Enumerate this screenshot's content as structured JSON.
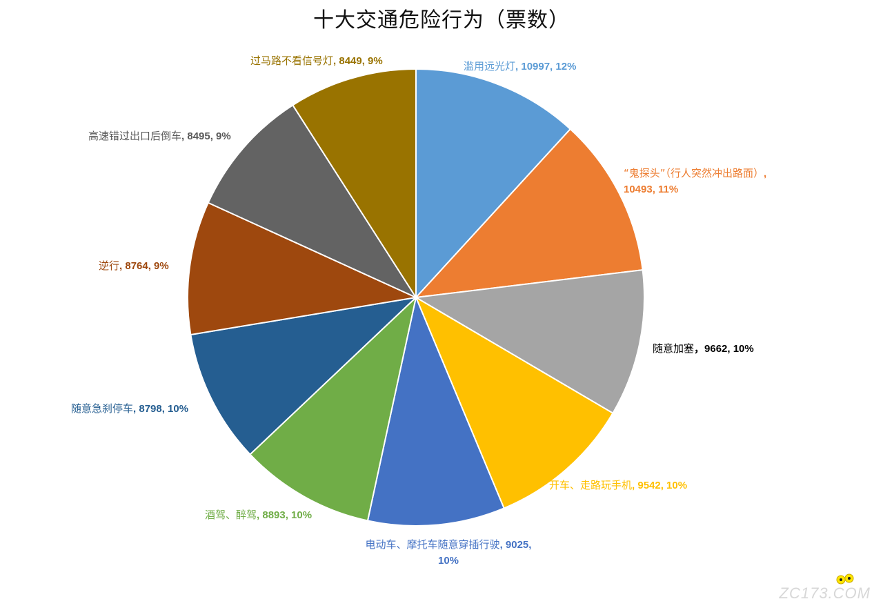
{
  "chart_data": {
    "type": "pie",
    "title": "十大交通危险行为（票数）",
    "slices": [
      {
        "label": "滥用远光灯",
        "value": 10997,
        "percent": "12%",
        "sep": ", ",
        "color": "#5b9bd5"
      },
      {
        "label": "“鬼探头”（行人突然冲出路面）",
        "value": 10493,
        "percent": "11%",
        "sep": ", ",
        "color": "#ed7d31"
      },
      {
        "label": "随意加塞",
        "value": 9662,
        "percent": "10%",
        "sep": "，",
        "color": "#a5a5a5"
      },
      {
        "label": "开车、走路玩手机",
        "value": 9542,
        "percent": "10%",
        "sep": ", ",
        "color": "#ffc000"
      },
      {
        "label": "电动车、摩托车随意穿插行驶",
        "value": 9025,
        "percent": "10%",
        "sep": ", ",
        "color": "#4472c4"
      },
      {
        "label": "酒驾、醉驾",
        "value": 8893,
        "percent": "10%",
        "sep": ", ",
        "color": "#70ad47"
      },
      {
        "label": "随意急刹停车",
        "value": 8798,
        "percent": "10%",
        "sep": ", ",
        "color": "#255e91"
      },
      {
        "label": "逆行",
        "value": 8764,
        "percent": "9%",
        "sep": ", ",
        "color": "#9e480e"
      },
      {
        "label": "高速错过出口后倒车",
        "value": 8495,
        "percent": "9%",
        "sep": ", ",
        "color": "#636363"
      },
      {
        "label": "过马路不看信号灯",
        "value": 8449,
        "percent": "9%",
        "sep": ", ",
        "color": "#997300"
      }
    ],
    "label_colors": [
      "#5b9bd5",
      "#ed7d31",
      "#000000",
      "#ffc000",
      "#4472c4",
      "#70ad47",
      "#255e91",
      "#9e480e",
      "#595959",
      "#997300"
    ],
    "legend": "none"
  },
  "watermark": {
    "text": "ZC173.COM",
    "accent": "#ffe600"
  }
}
